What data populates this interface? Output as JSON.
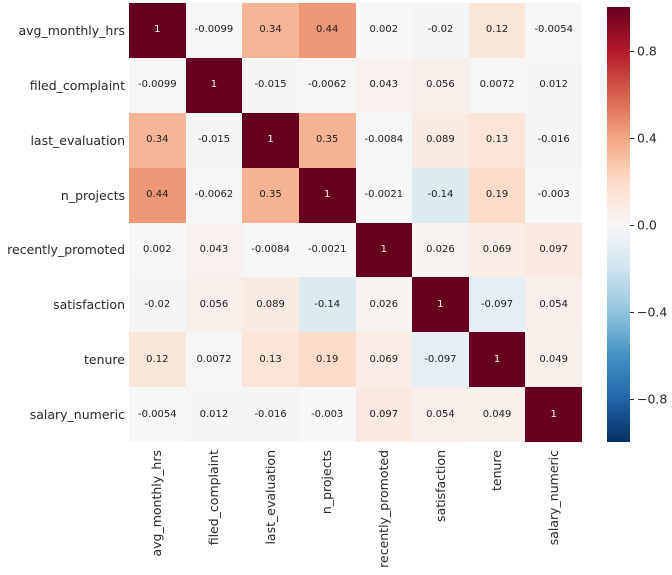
{
  "chart_data": {
    "type": "heatmap",
    "title": "",
    "xlabel": "",
    "ylabel": "",
    "categories": [
      "avg_monthly_hrs",
      "filed_complaint",
      "last_evaluation",
      "n_projects",
      "recently_promoted",
      "satisfaction",
      "tenure",
      "salary_numeric"
    ],
    "matrix": [
      [
        1,
        -0.0099,
        0.34,
        0.44,
        0.002,
        -0.02,
        0.12,
        -0.0054
      ],
      [
        -0.0099,
        1,
        -0.015,
        -0.0062,
        0.043,
        0.056,
        0.0072,
        0.012
      ],
      [
        0.34,
        -0.015,
        1,
        0.35,
        -0.0084,
        0.089,
        0.13,
        -0.016
      ],
      [
        0.44,
        -0.0062,
        0.35,
        1,
        -0.0021,
        -0.14,
        0.19,
        -0.003
      ],
      [
        0.002,
        0.043,
        -0.0084,
        -0.0021,
        1,
        0.026,
        0.069,
        0.097
      ],
      [
        -0.02,
        0.056,
        0.089,
        -0.14,
        0.026,
        1,
        -0.097,
        0.054
      ],
      [
        0.12,
        0.0072,
        0.13,
        0.19,
        0.069,
        -0.097,
        1,
        0.049
      ],
      [
        -0.0054,
        0.012,
        -0.016,
        -0.003,
        0.097,
        0.054,
        0.049,
        1
      ]
    ],
    "vmin": -1,
    "vmax": 1,
    "annotations_on": true,
    "grid": false,
    "colormap": {
      "name": "RdBu_r",
      "stops": [
        "#053061",
        "#2166ac",
        "#4393c3",
        "#92c5de",
        "#d1e5f0",
        "#f7f7f7",
        "#fddbc7",
        "#f4a582",
        "#d6604d",
        "#b2182b",
        "#67001f"
      ]
    },
    "colorbar": {
      "position": "right",
      "tick_values": [
        0.8,
        0.4,
        0.0,
        -0.4,
        -0.8
      ],
      "tick_labels": [
        "0.8",
        "0.4",
        "0.0",
        "−0.4",
        "−0.8"
      ]
    },
    "colors": {
      "label_text": "#262626",
      "annotation_text_dark": "#1b1b1b",
      "annotation_text_light": "#ffffff",
      "background": "#ffffff"
    }
  }
}
